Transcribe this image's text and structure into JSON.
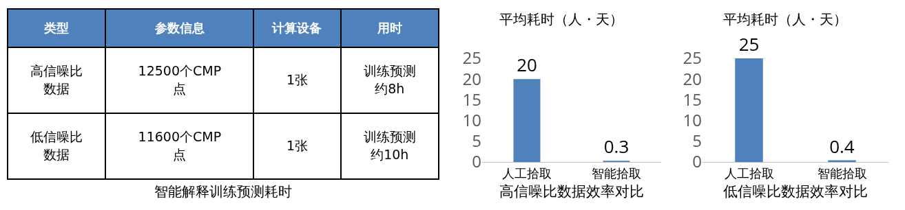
{
  "chart_data": [
    {
      "type": "other",
      "title": "智能解释训练预测耗时",
      "categories": [
        "类型",
        "参数信息",
        "计算设备",
        "用时"
      ],
      "color": "#4f81bd",
      "cell_labels": [
        [
          "高信噪比数据",
          "12500个CMP点",
          "1张",
          "训练预测约8h"
        ],
        [
          "低信噪比数据",
          "11600个CMP点",
          "1张",
          "训练预测约10h"
        ]
      ]
    },
    {
      "type": "bar",
      "title": "平均耗时（人・天）",
      "xlabel": "高信噪比数据效率对比",
      "categories": [
        "人工拾取",
        "智能拾取"
      ],
      "values": [
        20,
        0.3
      ],
      "color": "#4f81bd",
      "ylim": [
        0,
        25
      ],
      "yticks": [
        0,
        5,
        10,
        15,
        20,
        25
      ],
      "data_labels": true,
      "grid": false,
      "legend": false
    },
    {
      "type": "bar",
      "title": "平均耗时（人・天）",
      "xlabel": "低信噪比数据效率对比",
      "categories": [
        "人工拾取",
        "智能拾取"
      ],
      "values": [
        25,
        0.4
      ],
      "color": "#4f81bd",
      "ylim": [
        0,
        25
      ],
      "yticks": [
        0,
        5,
        10,
        15,
        20,
        25
      ],
      "data_labels": true,
      "grid": false,
      "legend": false
    }
  ]
}
